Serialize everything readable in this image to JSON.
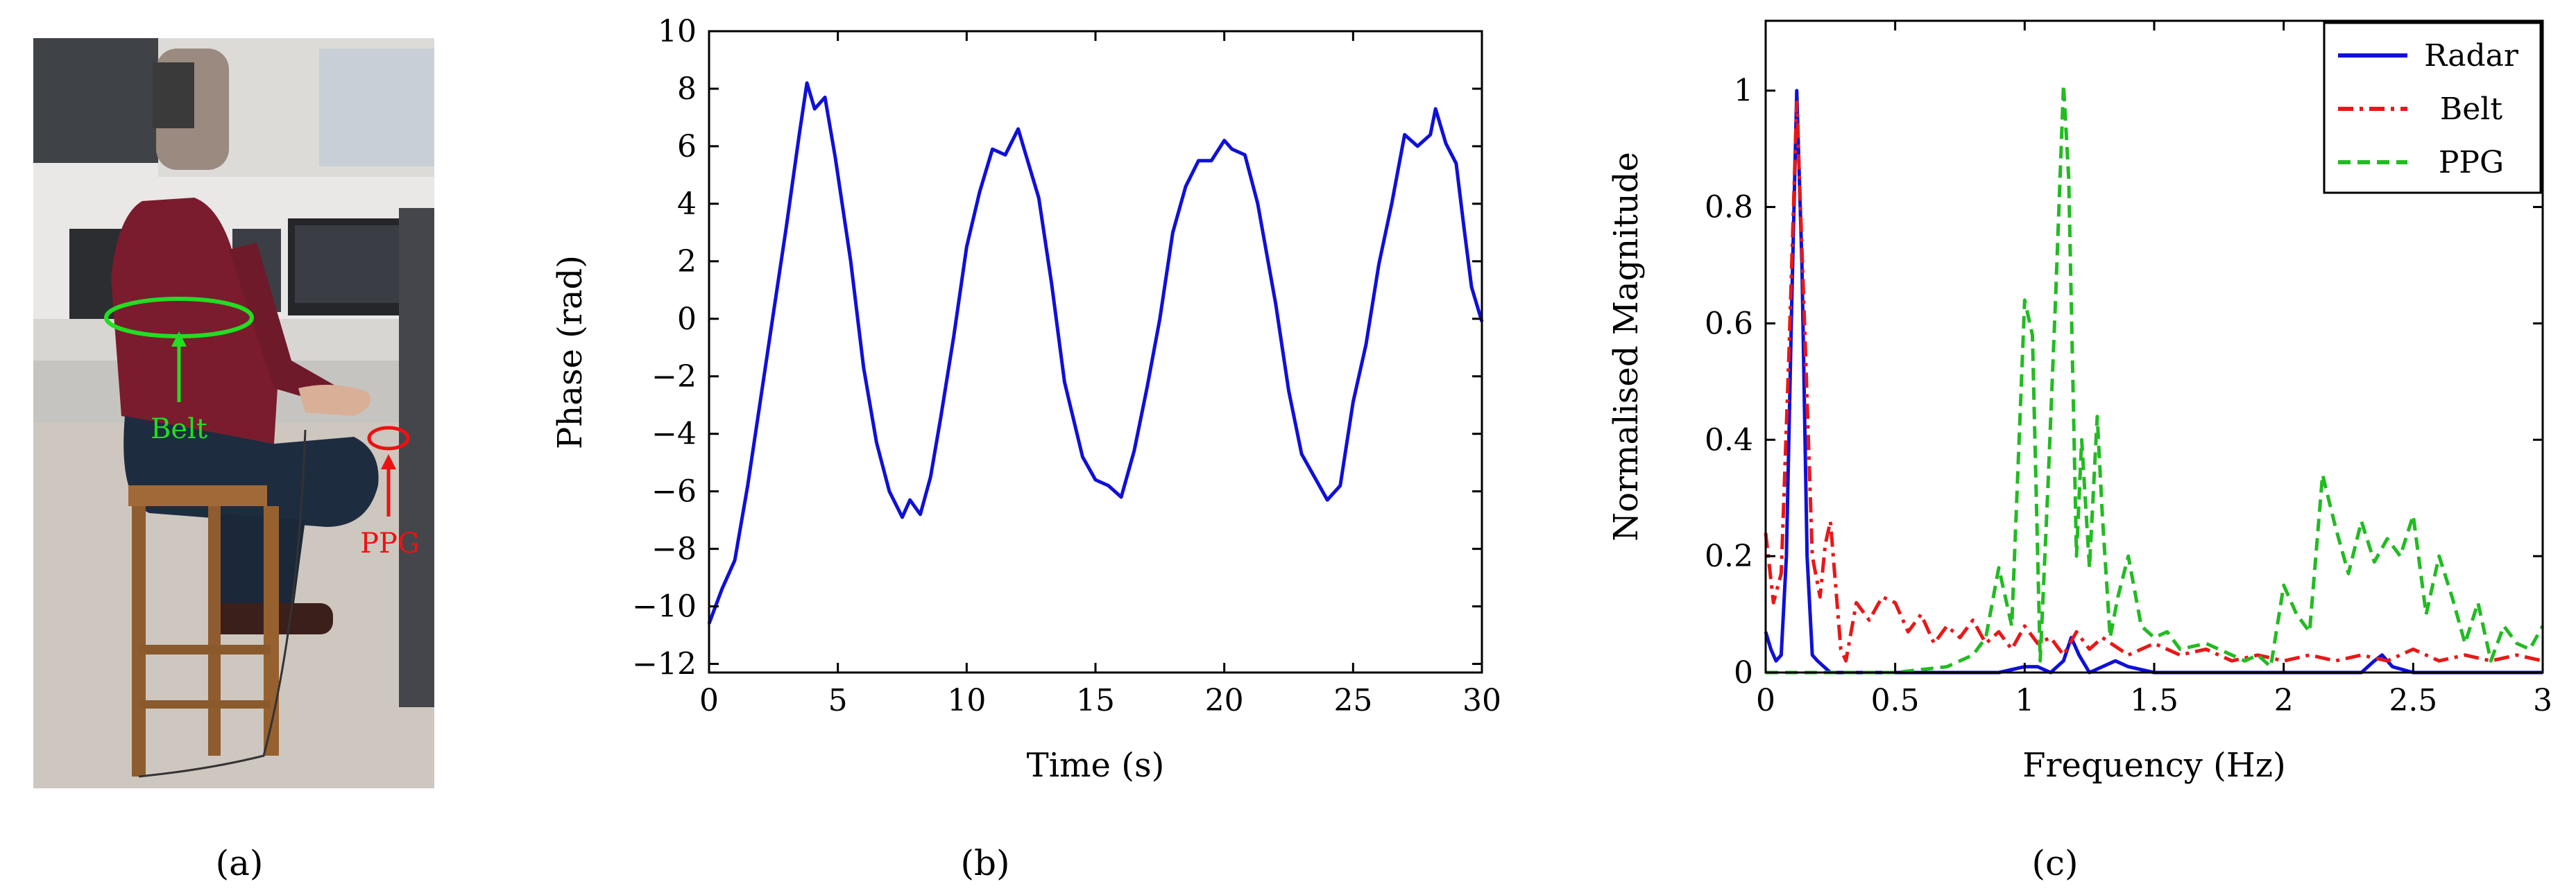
{
  "photo": {
    "annotations": {
      "belt": "Belt",
      "ppg": "PPG"
    },
    "colors": {
      "belt": "#22dd22",
      "ppg": "#ee1111",
      "shirt": "#7a1c2e",
      "jeans": "#1e2c40",
      "stool": "#a06a38",
      "wall": "#e6e5e3",
      "floor": "#cfc9c2"
    }
  },
  "panel_labels": {
    "a": "(a)",
    "b": "(b)",
    "c": "(c)"
  },
  "chart_data": [
    {
      "type": "line",
      "xlabel": "Time (s)",
      "ylabel": "Phase (rad)",
      "xlim": [
        0,
        30
      ],
      "ylim": [
        -12.3,
        10
      ],
      "xticks": [
        0,
        5,
        10,
        15,
        20,
        25,
        30
      ],
      "yticks": [
        -12,
        -10,
        -8,
        -6,
        -4,
        -2,
        0,
        2,
        4,
        6,
        8,
        10
      ],
      "grid": false,
      "series": [
        {
          "color": "#1010d8",
          "x": [
            0,
            0.5,
            1,
            1.5,
            2,
            2.5,
            3,
            3.5,
            3.8,
            4.1,
            4.5,
            4.9,
            5.5,
            6,
            6.5,
            7,
            7.5,
            7.8,
            8.2,
            8.6,
            9,
            9.5,
            10,
            10.5,
            11,
            11.5,
            12,
            12.3,
            12.8,
            13.3,
            13.8,
            14.5,
            15,
            15.5,
            16,
            16.5,
            17,
            17.5,
            18,
            18.5,
            19,
            19.5,
            20,
            20.3,
            20.8,
            21.3,
            22,
            22.5,
            23,
            23.5,
            24,
            24.5,
            25,
            25.5,
            26,
            26.5,
            27,
            27.5,
            28,
            28.2,
            28.6,
            29,
            29.3,
            29.6,
            30
          ],
          "y": [
            -10.6,
            -9.4,
            -8.4,
            -5.8,
            -2.8,
            0.2,
            3.2,
            6.4,
            8.2,
            7.3,
            7.7,
            5.6,
            2.0,
            -1.7,
            -4.3,
            -6.0,
            -6.9,
            -6.3,
            -6.8,
            -5.5,
            -3.4,
            -0.6,
            2.5,
            4.4,
            5.9,
            5.7,
            6.6,
            5.7,
            4.2,
            1.2,
            -2.2,
            -4.8,
            -5.6,
            -5.8,
            -6.2,
            -4.6,
            -2.4,
            0.0,
            3.0,
            4.6,
            5.5,
            5.5,
            6.2,
            5.9,
            5.7,
            4.0,
            0.5,
            -2.5,
            -4.7,
            -5.5,
            -6.3,
            -5.8,
            -2.9,
            -0.9,
            1.9,
            4.0,
            6.4,
            6.0,
            6.4,
            7.3,
            6.1,
            5.4,
            3.2,
            1.1,
            -0.1
          ]
        }
      ]
    },
    {
      "type": "line",
      "xlabel": "Frequency (Hz)",
      "ylabel": "Normalised Magnitude",
      "xlim": [
        0,
        3
      ],
      "ylim": [
        0,
        1.12
      ],
      "xticks": [
        0,
        0.5,
        1,
        1.5,
        2,
        2.5,
        3
      ],
      "yticks": [
        0,
        0.2,
        0.4,
        0.6,
        0.8,
        1
      ],
      "grid": false,
      "legend": "top-right",
      "series": [
        {
          "name": "Radar",
          "color": "#1010d8",
          "dash": "solid",
          "x": [
            0,
            0.02,
            0.04,
            0.06,
            0.08,
            0.1,
            0.12,
            0.14,
            0.16,
            0.18,
            0.2,
            0.25,
            0.3,
            0.6,
            0.9,
            1.0,
            1.05,
            1.1,
            1.15,
            1.18,
            1.21,
            1.25,
            1.3,
            1.35,
            1.4,
            1.5,
            2.0,
            2.3,
            2.35,
            2.38,
            2.42,
            2.5,
            3.0
          ],
          "y": [
            0.07,
            0.04,
            0.02,
            0.03,
            0.2,
            0.62,
            1.0,
            0.7,
            0.2,
            0.03,
            0.02,
            0.0,
            0.0,
            0.0,
            0.0,
            0.01,
            0.01,
            0.0,
            0.02,
            0.06,
            0.03,
            0.0,
            0.01,
            0.02,
            0.01,
            0.0,
            0.0,
            0.0,
            0.02,
            0.03,
            0.01,
            0.0,
            0.0
          ]
        },
        {
          "name": "Belt",
          "color": "#e81818",
          "dash": "dash-dot",
          "x": [
            0,
            0.03,
            0.06,
            0.09,
            0.12,
            0.15,
            0.18,
            0.21,
            0.23,
            0.25,
            0.27,
            0.29,
            0.31,
            0.35,
            0.4,
            0.45,
            0.5,
            0.55,
            0.6,
            0.65,
            0.7,
            0.75,
            0.8,
            0.85,
            0.9,
            0.95,
            1.0,
            1.05,
            1.1,
            1.15,
            1.2,
            1.25,
            1.3,
            1.4,
            1.5,
            1.6,
            1.7,
            1.8,
            1.9,
            2.0,
            2.1,
            2.2,
            2.3,
            2.4,
            2.5,
            2.6,
            2.7,
            2.8,
            2.9,
            3.0
          ],
          "y": [
            0.24,
            0.12,
            0.17,
            0.55,
            0.98,
            0.6,
            0.2,
            0.13,
            0.22,
            0.26,
            0.15,
            0.04,
            0.02,
            0.12,
            0.09,
            0.13,
            0.12,
            0.07,
            0.1,
            0.05,
            0.08,
            0.06,
            0.09,
            0.05,
            0.07,
            0.04,
            0.08,
            0.05,
            0.06,
            0.03,
            0.07,
            0.04,
            0.06,
            0.03,
            0.05,
            0.03,
            0.04,
            0.02,
            0.03,
            0.02,
            0.03,
            0.02,
            0.03,
            0.02,
            0.04,
            0.02,
            0.03,
            0.02,
            0.03,
            0.02
          ]
        },
        {
          "name": "PPG",
          "color": "#22bb22",
          "dash": "dashed",
          "x": [
            0,
            0.5,
            0.7,
            0.8,
            0.85,
            0.9,
            0.95,
            1.0,
            1.03,
            1.06,
            1.09,
            1.12,
            1.15,
            1.17,
            1.2,
            1.22,
            1.25,
            1.28,
            1.3,
            1.33,
            1.36,
            1.4,
            1.45,
            1.5,
            1.55,
            1.6,
            1.7,
            1.8,
            1.85,
            1.9,
            1.95,
            2.0,
            2.05,
            2.1,
            2.15,
            2.2,
            2.25,
            2.3,
            2.35,
            2.4,
            2.45,
            2.5,
            2.55,
            2.6,
            2.65,
            2.7,
            2.75,
            2.8,
            2.85,
            2.9,
            2.95,
            3.0
          ],
          "y": [
            0.0,
            0.0,
            0.01,
            0.03,
            0.06,
            0.18,
            0.08,
            0.64,
            0.58,
            0.02,
            0.32,
            0.65,
            1.01,
            0.85,
            0.2,
            0.4,
            0.18,
            0.44,
            0.27,
            0.06,
            0.13,
            0.2,
            0.08,
            0.06,
            0.07,
            0.04,
            0.05,
            0.03,
            0.02,
            0.03,
            0.01,
            0.15,
            0.1,
            0.07,
            0.34,
            0.25,
            0.17,
            0.26,
            0.19,
            0.23,
            0.2,
            0.27,
            0.1,
            0.2,
            0.13,
            0.05,
            0.12,
            0.02,
            0.08,
            0.05,
            0.04,
            0.08
          ]
        }
      ]
    }
  ]
}
